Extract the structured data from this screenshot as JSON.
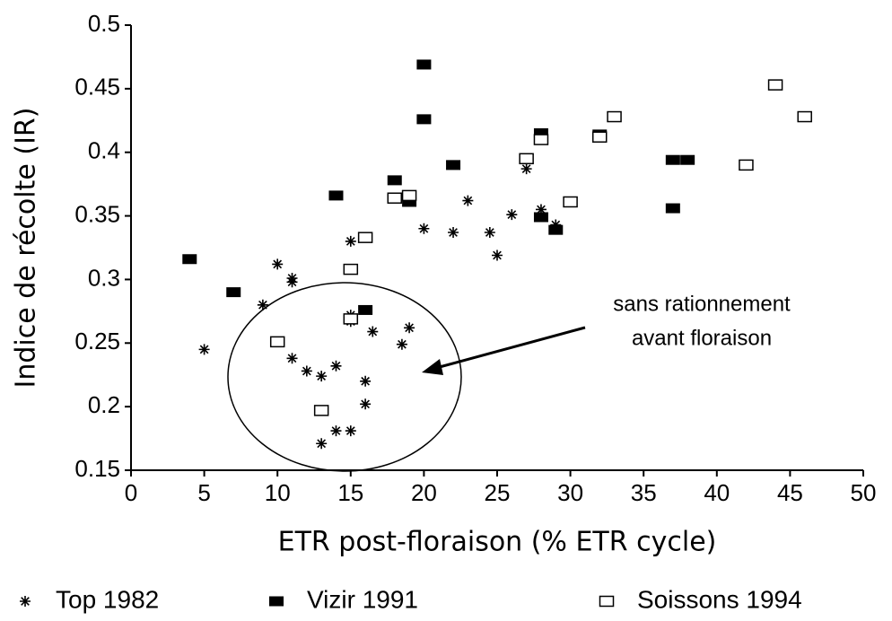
{
  "chart_data": {
    "type": "scatter",
    "x_label": "ETR post-floraison (% ETR cycle)",
    "y_label": "Indice de récolte (IR)",
    "annotation": [
      "sans rationnement",
      "avant floraison"
    ],
    "xlim": [
      0,
      50
    ],
    "xticks": [
      0,
      5,
      10,
      15,
      20,
      25,
      30,
      35,
      40,
      45,
      50
    ],
    "ylim": [
      0.15,
      0.5
    ],
    "yticks": [
      0.15,
      0.2,
      0.25,
      0.3,
      0.35,
      0.4,
      0.45,
      0.5
    ],
    "series": [
      {
        "name": "Top 1982",
        "marker": "asterisk",
        "color": "#000000",
        "x": [
          5,
          10,
          9,
          11,
          11,
          11,
          12,
          13,
          14,
          13,
          14,
          15,
          15,
          15,
          15,
          16.5,
          16,
          16,
          18.5,
          19,
          20,
          22,
          23,
          24.5,
          25,
          26,
          27,
          28,
          29
        ],
        "values": [
          0.245,
          0.312,
          0.28,
          0.301,
          0.298,
          0.238,
          0.228,
          0.224,
          0.232,
          0.171,
          0.181,
          0.181,
          0.33,
          0.272,
          0.267,
          0.259,
          0.22,
          0.202,
          0.249,
          0.262,
          0.34,
          0.337,
          0.362,
          0.337,
          0.319,
          0.351,
          0.387,
          0.355,
          0.343
        ]
      },
      {
        "name": "Vizir 1991",
        "marker": "filled-square",
        "color": "#000000",
        "x": [
          4,
          7,
          14,
          16,
          18,
          19,
          20,
          20,
          22,
          28,
          28,
          29,
          32,
          37,
          38,
          37
        ],
        "values": [
          0.316,
          0.29,
          0.366,
          0.276,
          0.378,
          0.361,
          0.469,
          0.426,
          0.39,
          0.415,
          0.349,
          0.339,
          0.414,
          0.394,
          0.394,
          0.356
        ]
      },
      {
        "name": "Soissons 1994",
        "marker": "open-square",
        "color": "#000000",
        "x": [
          10,
          15,
          15,
          13,
          16,
          18,
          19,
          27,
          28,
          30,
          32,
          33,
          42,
          44,
          46
        ],
        "values": [
          0.251,
          0.308,
          0.269,
          0.197,
          0.333,
          0.364,
          0.366,
          0.395,
          0.41,
          0.361,
          0.412,
          0.428,
          0.39,
          0.453,
          0.428
        ]
      }
    ]
  }
}
